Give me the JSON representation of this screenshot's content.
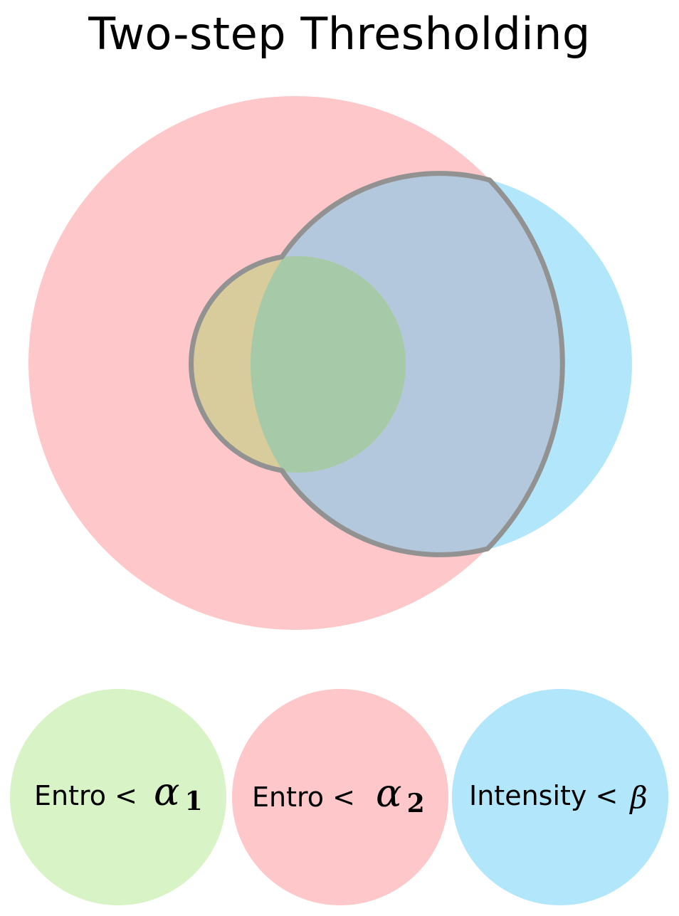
{
  "title": "Two-step Thresholding",
  "colors": {
    "entro_alpha1": "#d8f3c6",
    "entro_alpha2": "#fec7c9",
    "intensity_beta": "#b1e6fb",
    "overlap_green": "#a6c9a8",
    "overlap_tan": "#d8cb9c",
    "overlap_blue": "#b3c8dc",
    "selection_outline": "#929292"
  },
  "legend": [
    {
      "label": "Entro <",
      "symbol": "α",
      "subscript": "1"
    },
    {
      "label": "Entro <",
      "symbol": "α",
      "subscript": "2"
    },
    {
      "label": "Intensity <",
      "symbol": "β",
      "subscript": ""
    }
  ]
}
